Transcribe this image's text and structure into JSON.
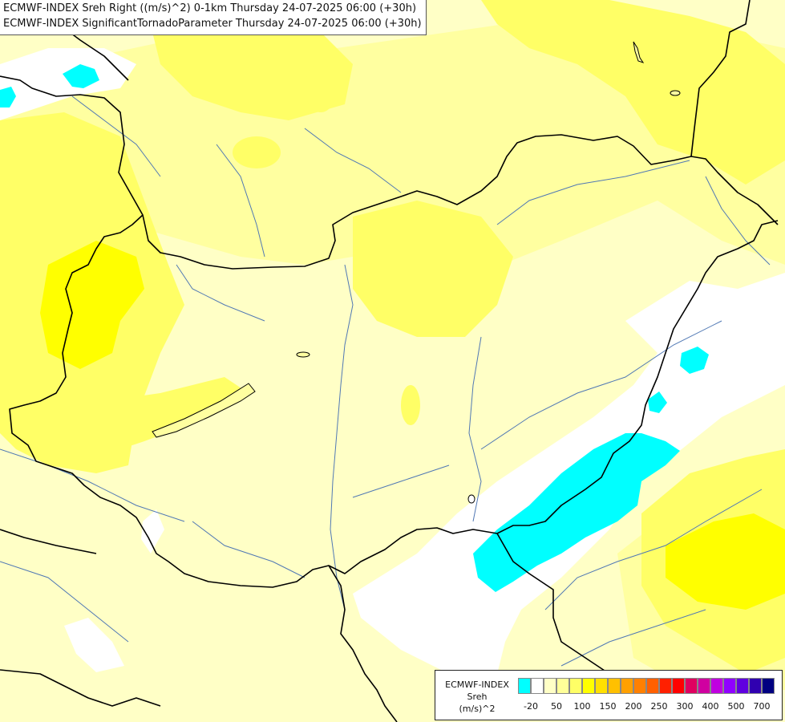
{
  "title": {
    "line1": "ECMWF-INDEX Sreh Right ((m/s)^2) 0-1km Thursday 24-07-2025 06:00 (+30h)",
    "line2": "ECMWF-INDEX SignificantTornadoParameter Thursday 24-07-2025 06:00 (+30h)"
  },
  "legend": {
    "model": "ECMWF-INDEX",
    "variable": "Sreh",
    "unit": "(m/s)^2",
    "colors": [
      "#00ffff",
      "#ffffff",
      "#ffffc6",
      "#ffff99",
      "#ffff66",
      "#ffff00",
      "#ffe000",
      "#ffc000",
      "#ffa000",
      "#ff8000",
      "#ff6000",
      "#ff2000",
      "#ff0000",
      "#e00060",
      "#d000a0",
      "#c000e0",
      "#9000ff",
      "#6000e0",
      "#3000b0",
      "#000080"
    ],
    "ticks": [
      "-20",
      "50",
      "100",
      "150",
      "200",
      "250",
      "300",
      "400",
      "500",
      "700"
    ]
  },
  "map_colors": {
    "background": "#ffffc6",
    "light_yellow": "#ffffa0",
    "yellow": "#ffff66",
    "strong_yellow": "#ffff00",
    "white_band": "#ffffff",
    "cyan_band": "#00ffff",
    "border": "#000000",
    "river": "#5078b4"
  }
}
